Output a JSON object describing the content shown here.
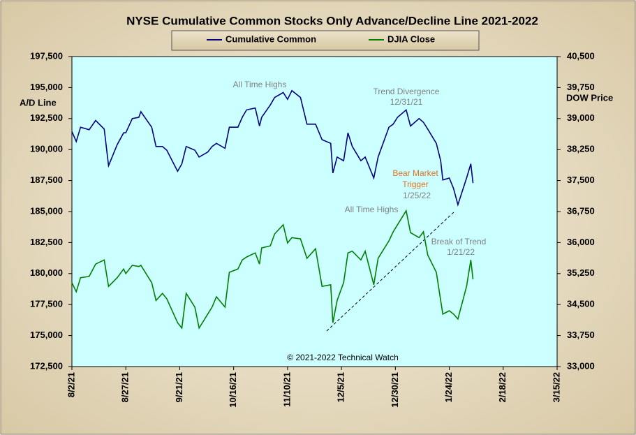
{
  "chart_data": {
    "type": "line",
    "title": "NYSE Cumulative  Common Stocks Only Advance/Decline Line 2021-2022",
    "y_label": "A/D Line",
    "y2_label": "DOW Price",
    "annotations": [
      "All Time Highs",
      "Trend  Divergence",
      "12/31/21",
      "Bear Market",
      "Trigger",
      "1/25/22",
      "All Time Highs",
      "Break of Trend",
      "1/21/22",
      "© 2021-2022  Technical Watch"
    ],
    "x": [
      "2021-08-02",
      "2021-08-04",
      "2021-08-06",
      "2021-08-10",
      "2021-08-13",
      "2021-08-17",
      "2021-08-19",
      "2021-08-23",
      "2021-08-26",
      "2021-08-27",
      "2021-08-30",
      "2021-09-02",
      "2021-09-03",
      "2021-09-08",
      "2021-09-10",
      "2021-09-13",
      "2021-09-15",
      "2021-09-20",
      "2021-09-22",
      "2021-09-24",
      "2021-09-28",
      "2021-09-30",
      "2021-10-04",
      "2021-10-06",
      "2021-10-08",
      "2021-10-12",
      "2021-10-14",
      "2021-10-18",
      "2021-10-20",
      "2021-10-22",
      "2021-10-26",
      "2021-10-28",
      "2021-10-29",
      "2021-11-02",
      "2021-11-04",
      "2021-11-08",
      "2021-11-10",
      "2021-11-12",
      "2021-11-16",
      "2021-11-19",
      "2021-11-23",
      "2021-11-26",
      "2021-11-30",
      "2021-12-01",
      "2021-12-03",
      "2021-12-06",
      "2021-12-08",
      "2021-12-10",
      "2021-12-14",
      "2021-12-16",
      "2021-12-20",
      "2021-12-22",
      "2021-12-27",
      "2021-12-29",
      "2021-12-31",
      "2022-01-04",
      "2022-01-06",
      "2022-01-10",
      "2022-01-12",
      "2022-01-14",
      "2022-01-18",
      "2022-01-20",
      "2022-01-21",
      "2022-01-24",
      "2022-01-26",
      "2022-01-28",
      "2022-02-01",
      "2022-02-03",
      "2022-02-04"
    ],
    "series": [
      {
        "name": "Cumulative Common",
        "color": "#000080",
        "values": [
          191450,
          190650,
          191800,
          191600,
          192350,
          191650,
          188700,
          190400,
          191350,
          191350,
          192500,
          192600,
          193050,
          191800,
          190250,
          190250,
          189950,
          188250,
          188850,
          190250,
          189950,
          189400,
          189800,
          190250,
          190500,
          190100,
          191800,
          191800,
          192600,
          193200,
          193350,
          191900,
          192600,
          193600,
          194200,
          194600,
          194050,
          194750,
          194200,
          192050,
          192050,
          190800,
          190500,
          188100,
          189400,
          189100,
          191350,
          190250,
          189100,
          189400,
          187700,
          189400,
          191800,
          192050,
          192600,
          193200,
          191900,
          192500,
          192200,
          191650,
          190500,
          189100,
          187550,
          187700,
          186850,
          185550,
          187700,
          188850,
          187300
        ]
      },
      {
        "name": "DJIA Close",
        "color": "#008000",
        "axis": "y2",
        "values": [
          35030,
          34810,
          35150,
          35180,
          35480,
          35580,
          34940,
          35150,
          35360,
          35250,
          35450,
          35420,
          35450,
          35030,
          34600,
          34770,
          34640,
          34060,
          33930,
          34770,
          34440,
          33930,
          34270,
          34440,
          34690,
          34440,
          35280,
          35360,
          35580,
          35650,
          35750,
          35480,
          35870,
          35920,
          36210,
          36430,
          35990,
          36120,
          36090,
          35620,
          35850,
          34940,
          34980,
          34060,
          34600,
          35030,
          35750,
          35790,
          35580,
          35790,
          34980,
          35620,
          36040,
          36260,
          36430,
          36770,
          36240,
          36120,
          36260,
          35700,
          35280,
          34600,
          34270,
          34350,
          34270,
          34150,
          34940,
          35580,
          35110
        ]
      }
    ],
    "xlim": [
      "2021-08-02",
      "2022-03-15"
    ],
    "xticks": [
      {
        "value": "2021-08-02",
        "label": "8/2/21"
      },
      {
        "value": "2021-08-27",
        "label": "8/27/21"
      },
      {
        "value": "2021-09-21",
        "label": "9/21/21"
      },
      {
        "value": "2021-10-16",
        "label": "10/16/21"
      },
      {
        "value": "2021-11-10",
        "label": "11/10/21"
      },
      {
        "value": "2021-12-05",
        "label": "12/5/21"
      },
      {
        "value": "2021-12-30",
        "label": "12/30/21"
      },
      {
        "value": "2022-01-24",
        "label": "1/24/22"
      },
      {
        "value": "2022-02-18",
        "label": "2/18/22"
      },
      {
        "value": "2022-03-15",
        "label": "3/15/22"
      }
    ],
    "ylim": [
      172500,
      197500
    ],
    "yticks": [
      {
        "value": 172500,
        "label": "172,500"
      },
      {
        "value": 175000,
        "label": "175,000"
      },
      {
        "value": 177500,
        "label": "177,500"
      },
      {
        "value": 180000,
        "label": "180,000"
      },
      {
        "value": 182500,
        "label": "182,500"
      },
      {
        "value": 185000,
        "label": "185,000"
      },
      {
        "value": 187500,
        "label": "187,500"
      },
      {
        "value": 190000,
        "label": "190,000"
      },
      {
        "value": 192500,
        "label": "192,500"
      },
      {
        "value": 195000,
        "label": "195,000"
      },
      {
        "value": 197500,
        "label": "197,500"
      }
    ],
    "y2lim": [
      33000,
      40500
    ],
    "y2ticks": [
      {
        "value": 33000,
        "label": "33,000"
      },
      {
        "value": 33750,
        "label": "33,750"
      },
      {
        "value": 34500,
        "label": "34,500"
      },
      {
        "value": 35250,
        "label": "35,250"
      },
      {
        "value": 36000,
        "label": "36,000"
      },
      {
        "value": 36750,
        "label": "36,750"
      },
      {
        "value": 37500,
        "label": "37,500"
      },
      {
        "value": 38250,
        "label": "38,250"
      },
      {
        "value": 39000,
        "label": "39,000"
      },
      {
        "value": 39750,
        "label": "39,750"
      },
      {
        "value": 40500,
        "label": "40,500"
      }
    ],
    "grid": false,
    "legend": "top"
  }
}
